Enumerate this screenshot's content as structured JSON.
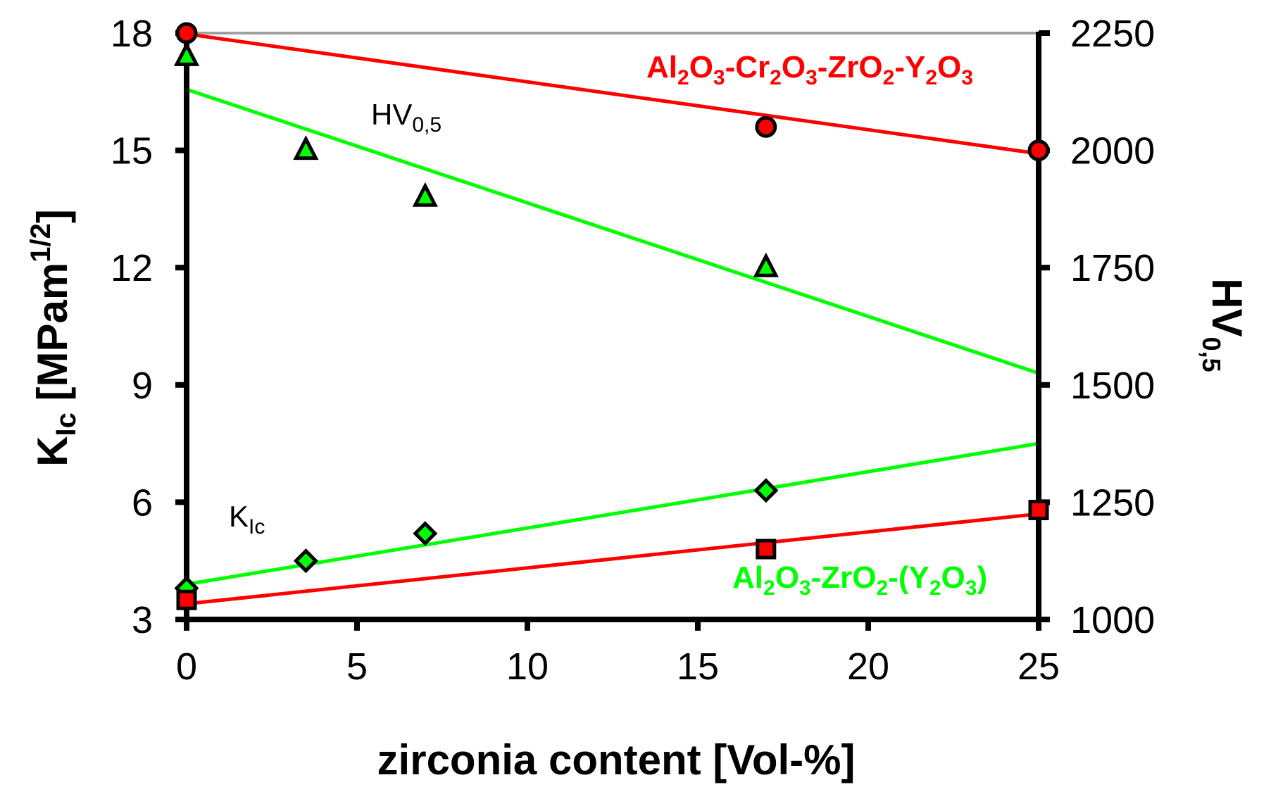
{
  "chart_data": {
    "type": "scatter",
    "title": "",
    "xlabel": "zirconia content [Vol-%]",
    "ylabel_left": {
      "main": "K",
      "sub": "Ic",
      "rest": " [MPam",
      "sup": "1/2",
      "end": "]"
    },
    "ylabel_right": {
      "main": "HV",
      "sub": "0,5"
    },
    "xlim": [
      0,
      25
    ],
    "ylim_left": [
      3,
      18
    ],
    "ylim_right": [
      1000,
      2250
    ],
    "x_ticks": [
      "0",
      "5",
      "10",
      "15",
      "20",
      "25"
    ],
    "y_left_ticks": [
      "3",
      "6",
      "9",
      "12",
      "15",
      "18"
    ],
    "y_right_ticks": [
      "1000",
      "1250",
      "1500",
      "1750",
      "2000",
      "2250"
    ],
    "series": [
      {
        "name": "HV Al2O3-Cr2O3-ZrO2-Y2O3",
        "axis": "right",
        "marker": "circle",
        "color": "#ff0000",
        "points": [
          [
            0,
            2250
          ],
          [
            17,
            2050
          ],
          [
            25,
            2000
          ]
        ],
        "trendline": [
          [
            0,
            2248
          ],
          [
            25,
            1993
          ]
        ]
      },
      {
        "name": "HV Al2O3-ZrO2-(Y2O3)",
        "axis": "right",
        "marker": "triangle",
        "color": "#00ff00",
        "points": [
          [
            0,
            2200
          ],
          [
            3.5,
            2000
          ],
          [
            7,
            1900
          ],
          [
            17,
            1750
          ]
        ],
        "trendline": [
          [
            0,
            2130
          ],
          [
            25,
            1525
          ]
        ]
      },
      {
        "name": "KIc Al2O3-ZrO2-(Y2O3)",
        "axis": "left",
        "marker": "diamond",
        "color": "#00ff00",
        "points": [
          [
            0,
            3.8
          ],
          [
            3.5,
            4.5
          ],
          [
            7,
            5.2
          ],
          [
            17,
            6.3
          ]
        ],
        "trendline": [
          [
            0,
            3.9
          ],
          [
            25,
            7.5
          ]
        ]
      },
      {
        "name": "KIc Al2O3-Cr2O3-ZrO2-Y2O3",
        "axis": "left",
        "marker": "square",
        "color": "#ff0000",
        "points": [
          [
            0,
            3.5
          ],
          [
            17,
            4.8
          ],
          [
            25,
            5.8
          ]
        ],
        "trendline": [
          [
            0,
            3.4
          ],
          [
            25,
            5.7
          ]
        ]
      }
    ],
    "annotations": {
      "hv_label": {
        "main": "HV",
        "sub": "0,5"
      },
      "kic_label": {
        "main": "K",
        "sub": "Ic"
      },
      "red_series_label": [
        {
          "t": "Al",
          "s": false
        },
        {
          "t": "2",
          "s": true
        },
        {
          "t": "O",
          "s": false
        },
        {
          "t": "3",
          "s": true
        },
        {
          "t": "-Cr",
          "s": false
        },
        {
          "t": "2",
          "s": true
        },
        {
          "t": "O",
          "s": false
        },
        {
          "t": "3",
          "s": true
        },
        {
          "t": "-ZrO",
          "s": false
        },
        {
          "t": "2",
          "s": true
        },
        {
          "t": "-Y",
          "s": false
        },
        {
          "t": "2",
          "s": true
        },
        {
          "t": "O",
          "s": false
        },
        {
          "t": "3",
          "s": true
        }
      ],
      "green_series_label": [
        {
          "t": "Al",
          "s": false
        },
        {
          "t": "2",
          "s": true
        },
        {
          "t": "O",
          "s": false
        },
        {
          "t": "3",
          "s": true
        },
        {
          "t": "-ZrO",
          "s": false
        },
        {
          "t": "2",
          "s": true
        },
        {
          "t": "-(Y",
          "s": false
        },
        {
          "t": "2",
          "s": true
        },
        {
          "t": "O",
          "s": false
        },
        {
          "t": "3",
          "s": true
        },
        {
          "t": ")",
          "s": false
        }
      ]
    },
    "colors": {
      "red": "#ff0000",
      "green": "#00ff00",
      "gridline": "#a0a0a0",
      "axis": "#000000"
    }
  }
}
